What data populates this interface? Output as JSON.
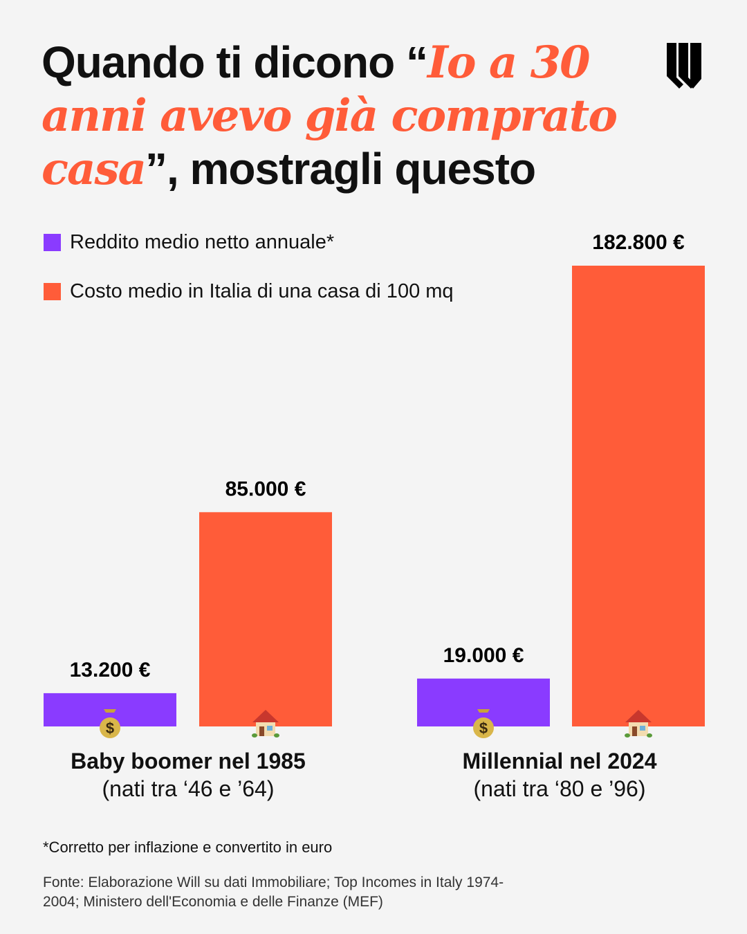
{
  "title": {
    "part1": "Quando ti dicono “",
    "highlight": "Io a 30 anni avevo già comprato casa",
    "part2": "”, mostragli questo"
  },
  "colors": {
    "background": "#f4f4f4",
    "income": "#8a3bff",
    "house": "#ff5c39"
  },
  "chart_data": {
    "type": "bar",
    "categories": [
      "Baby boomer nel 1985",
      "Millennial nel 2024"
    ],
    "category_subtitles": [
      "(nati tra ‘46 e ’64)",
      "(nati tra ‘80 e ’96)"
    ],
    "series": [
      {
        "name": "Reddito medio netto annuale*",
        "color": "#8a3bff",
        "icon": "money-bag-icon",
        "values": [
          13200,
          19000
        ],
        "labels": [
          "13.200 €",
          "19.000 €"
        ]
      },
      {
        "name": "Costo medio in Italia di una casa di 100 mq",
        "color": "#ff5c39",
        "icon": "house-icon",
        "values": [
          85000,
          182800
        ],
        "labels": [
          "85.000 €",
          "182.800 €"
        ]
      }
    ],
    "ylim": [
      0,
      182800
    ],
    "grid": false,
    "legend": "top-left"
  },
  "footnote": "*Corretto per inflazione e convertito in euro",
  "source": "Fonte: Elaborazione Will su dati Immobiliare; Top Incomes in Italy 1974-2004; Ministero dell'Economia e delle Finanze (MEF)"
}
